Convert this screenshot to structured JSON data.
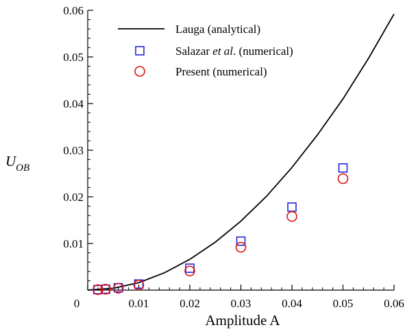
{
  "chart_data": {
    "type": "scatter",
    "xlabel": "Amplitude A",
    "ylabel": {
      "main": "U",
      "sub": "OB"
    },
    "xlim": [
      0,
      0.06
    ],
    "ylim": [
      0,
      0.06
    ],
    "x_ticks": [
      0,
      0.01,
      0.02,
      0.03,
      0.04,
      0.05,
      0.06
    ],
    "x_tick_labels": [
      "0",
      "0.01",
      "0.02",
      "0.03",
      "0.04",
      "0.05",
      "0.06"
    ],
    "y_ticks": [
      0.01,
      0.02,
      0.03,
      0.04,
      0.05,
      0.06
    ],
    "y_tick_labels": [
      "0.01",
      "0.02",
      "0.03",
      "0.04",
      "0.05",
      "0.06"
    ],
    "grid": false,
    "legend_placement": "top-left",
    "series": [
      {
        "name": "Lauga  (analytical)",
        "kind": "line",
        "color": "#000000",
        "x": [
          0,
          0.005,
          0.01,
          0.015,
          0.02,
          0.025,
          0.03,
          0.035,
          0.04,
          0.045,
          0.05,
          0.055,
          0.06
        ],
        "y": [
          0,
          0.0004,
          0.0016,
          0.0037,
          0.0066,
          0.0103,
          0.0148,
          0.0201,
          0.0263,
          0.0333,
          0.041,
          0.0497,
          0.0592
        ]
      },
      {
        "name": "Salazar et al. (numerical)",
        "legend_parts": [
          {
            "text": "Salazar ",
            "italic": false
          },
          {
            "text": "et al",
            "italic": true
          },
          {
            "text": ". (numerical)",
            "italic": false
          }
        ],
        "kind": "square",
        "color": "#2222dd",
        "x": [
          0.002,
          0.0035,
          0.006,
          0.01,
          0.02,
          0.03,
          0.04,
          0.05
        ],
        "y": [
          0.0001,
          0.0002,
          0.0005,
          0.0013,
          0.0047,
          0.0105,
          0.0178,
          0.0262
        ]
      },
      {
        "name": "Present (numerical)",
        "kind": "circle",
        "color": "#dd1111",
        "x": [
          0.002,
          0.0035,
          0.006,
          0.01,
          0.02,
          0.03,
          0.04,
          0.05
        ],
        "y": [
          0.0001,
          0.0002,
          0.0004,
          0.0011,
          0.0041,
          0.0092,
          0.0158,
          0.0239
        ]
      }
    ]
  }
}
